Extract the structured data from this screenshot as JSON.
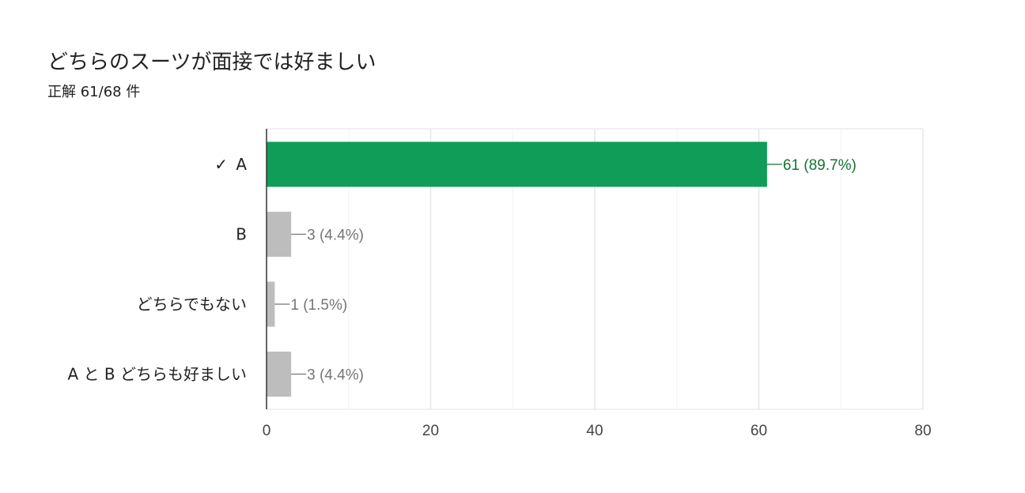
{
  "header": {
    "question_title": "どちらのスーツが面接では好ましい",
    "score_text": "正解 61/68 件"
  },
  "colors": {
    "correct_bar": "#0f9d58",
    "correct_label": "#137333",
    "other_bar": "#bdbdbd",
    "other_label": "#757575",
    "grid": "#ebebeb",
    "axis": "#333333"
  },
  "chart_data": {
    "type": "bar",
    "orientation": "horizontal",
    "categories": [
      "A",
      "B",
      "どちらでもない",
      "A と B どちらも好ましい"
    ],
    "values": [
      61,
      3,
      1,
      3
    ],
    "value_labels": [
      "61 (89.7%)",
      "3 (4.4%)",
      "1 (1.5%)",
      "3 (4.4%)"
    ],
    "correct": [
      true,
      false,
      false,
      false
    ],
    "correct_mark": "✓",
    "xlim": [
      0,
      80
    ],
    "xticks": [
      0,
      20,
      40,
      60,
      80
    ],
    "grid": true,
    "title": "どちらのスーツが面接では好ましい",
    "subtitle": "正解 61/68 件"
  }
}
